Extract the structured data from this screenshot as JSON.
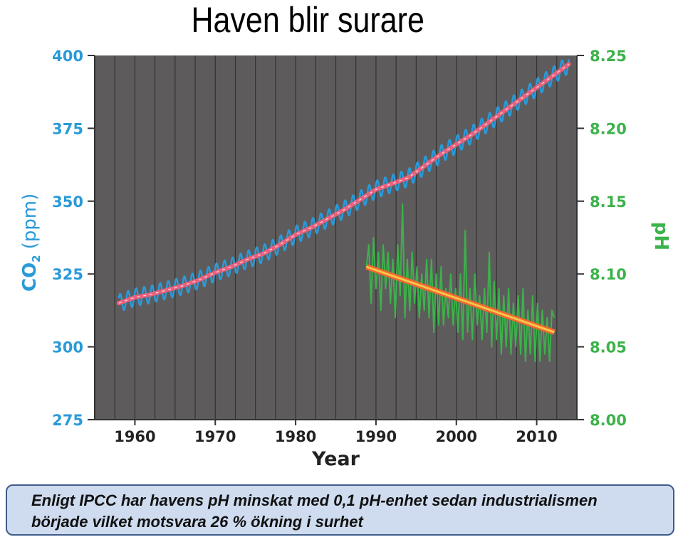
{
  "title": "Haven blir surare",
  "caption": {
    "line1": "Enligt IPCC har havens pH minskat med 0,1 pH-enhet sedan industrialismen",
    "line2": "började vilket motsvara 26 %  ökning i  surhet"
  },
  "colors": {
    "plot_background": "#5e5b5d",
    "co2": "#2a9ad8",
    "co2_trend": "#f0607a",
    "ph": "#3cb24a",
    "ph_trend": "#f2662e",
    "ph_trend_highlight": "#f5c64a",
    "gridline": "#2b2b2b"
  },
  "chart_data": {
    "type": "line",
    "title": "",
    "xlabel": "Year",
    "ylabel_left": "CO",
    "ylabel_left_subscript": "2",
    "ylabel_left_unit": "(ppm)",
    "ylabel_right": "pH",
    "xlim": [
      1955,
      2015
    ],
    "ylim_left": [
      275,
      400
    ],
    "ylim_right": [
      8.0,
      8.25
    ],
    "x_ticks": [
      1960,
      1970,
      1980,
      1990,
      2000,
      2010
    ],
    "x_tick_labels": [
      "1960",
      "1970",
      "1980",
      "1990",
      "2000",
      "2010"
    ],
    "y_ticks_left": [
      275,
      300,
      325,
      350,
      375,
      400
    ],
    "y_tick_labels_left": [
      "275",
      "300",
      "325",
      "350",
      "375",
      "400"
    ],
    "y_ticks_right": [
      8.0,
      8.05,
      8.1,
      8.15,
      8.2,
      8.25
    ],
    "y_tick_labels_right": [
      "8.00",
      "8.05",
      "8.10",
      "8.15",
      "8.20",
      "8.25"
    ],
    "grid": "vertical lines every 2.5 years",
    "legend": "none",
    "series": [
      {
        "axis": "left",
        "kind": "seasonal",
        "x": [
          1958,
          1960,
          1962,
          1964,
          1966,
          1968,
          1970,
          1972,
          1974,
          1976,
          1978,
          1980,
          1982,
          1984,
          1986,
          1988,
          1990,
          1992,
          1994,
          1996,
          1998,
          2000,
          2002,
          2004,
          2006,
          2008,
          2010,
          2012,
          2014
        ],
        "values": [
          315,
          317,
          318,
          319.5,
          321,
          323,
          325.5,
          327.5,
          330,
          332,
          335,
          338.5,
          341,
          344,
          347,
          350.5,
          354,
          356,
          358,
          362,
          366,
          369.5,
          373,
          377,
          381,
          385,
          389,
          393,
          397
        ],
        "seasonal_amplitude": 3
      },
      {
        "axis": "left",
        "kind": "trend",
        "x": [
          1958,
          1960,
          1962,
          1964,
          1966,
          1968,
          1970,
          1972,
          1974,
          1976,
          1978,
          1980,
          1982,
          1984,
          1986,
          1988,
          1990,
          1992,
          1994,
          1996,
          1998,
          2000,
          2002,
          2004,
          2006,
          2008,
          2010,
          2012,
          2014
        ],
        "values": [
          315,
          317,
          318,
          319.5,
          321,
          323,
          325.5,
          327.5,
          330,
          332,
          335,
          338.5,
          341,
          344,
          347,
          350.5,
          354,
          356,
          358,
          362,
          366,
          369.5,
          373,
          377,
          381,
          385,
          389,
          393,
          397
        ]
      },
      {
        "axis": "right",
        "kind": "measured",
        "x": [
          1988.8,
          1989.1,
          1989.4,
          1989.7,
          1990,
          1990.3,
          1990.6,
          1990.9,
          1991.2,
          1991.5,
          1991.8,
          1992.1,
          1992.4,
          1992.7,
          1993,
          1993.3,
          1993.6,
          1993.9,
          1994.2,
          1994.5,
          1994.8,
          1995.1,
          1995.4,
          1995.7,
          1996,
          1996.3,
          1996.6,
          1996.9,
          1997.2,
          1997.5,
          1997.8,
          1998.1,
          1998.4,
          1998.7,
          1999,
          1999.3,
          1999.6,
          1999.9,
          2000.2,
          2000.5,
          2000.8,
          2001.1,
          2001.4,
          2001.7,
          2002,
          2002.3,
          2002.6,
          2002.9,
          2003.2,
          2003.5,
          2003.8,
          2004.1,
          2004.4,
          2004.7,
          2005,
          2005.3,
          2005.6,
          2005.9,
          2006.2,
          2006.5,
          2006.8,
          2007.1,
          2007.4,
          2007.7,
          2008,
          2008.3,
          2008.6,
          2008.9,
          2009.2,
          2009.5,
          2009.8,
          2010.1,
          2010.4,
          2010.7,
          2011,
          2011.3,
          2011.6,
          2011.9,
          2012.2
        ],
        "values": [
          8.105,
          8.12,
          8.08,
          8.125,
          8.09,
          8.115,
          8.075,
          8.12,
          8.09,
          8.115,
          8.08,
          8.11,
          8.07,
          8.12,
          8.085,
          8.148,
          8.07,
          8.11,
          8.075,
          8.115,
          8.08,
          8.105,
          8.07,
          8.1,
          8.075,
          8.11,
          8.07,
          8.11,
          8.06,
          8.1,
          8.065,
          8.105,
          8.065,
          8.09,
          8.07,
          8.1,
          8.065,
          8.09,
          8.06,
          8.1,
          8.055,
          8.13,
          8.06,
          8.09,
          8.055,
          8.1,
          8.065,
          8.085,
          8.055,
          8.09,
          8.06,
          8.115,
          8.05,
          8.095,
          8.055,
          8.09,
          8.045,
          8.085,
          8.05,
          8.09,
          8.045,
          8.08,
          8.05,
          8.085,
          8.045,
          8.09,
          8.04,
          8.075,
          8.045,
          8.085,
          8.04,
          8.08,
          8.04,
          8.075,
          8.045,
          8.07,
          8.04,
          8.075,
          8.07
        ]
      },
      {
        "axis": "right",
        "kind": "trend",
        "x": [
          1988.8,
          2012.2
        ],
        "values": [
          8.105,
          8.06
        ]
      }
    ]
  }
}
